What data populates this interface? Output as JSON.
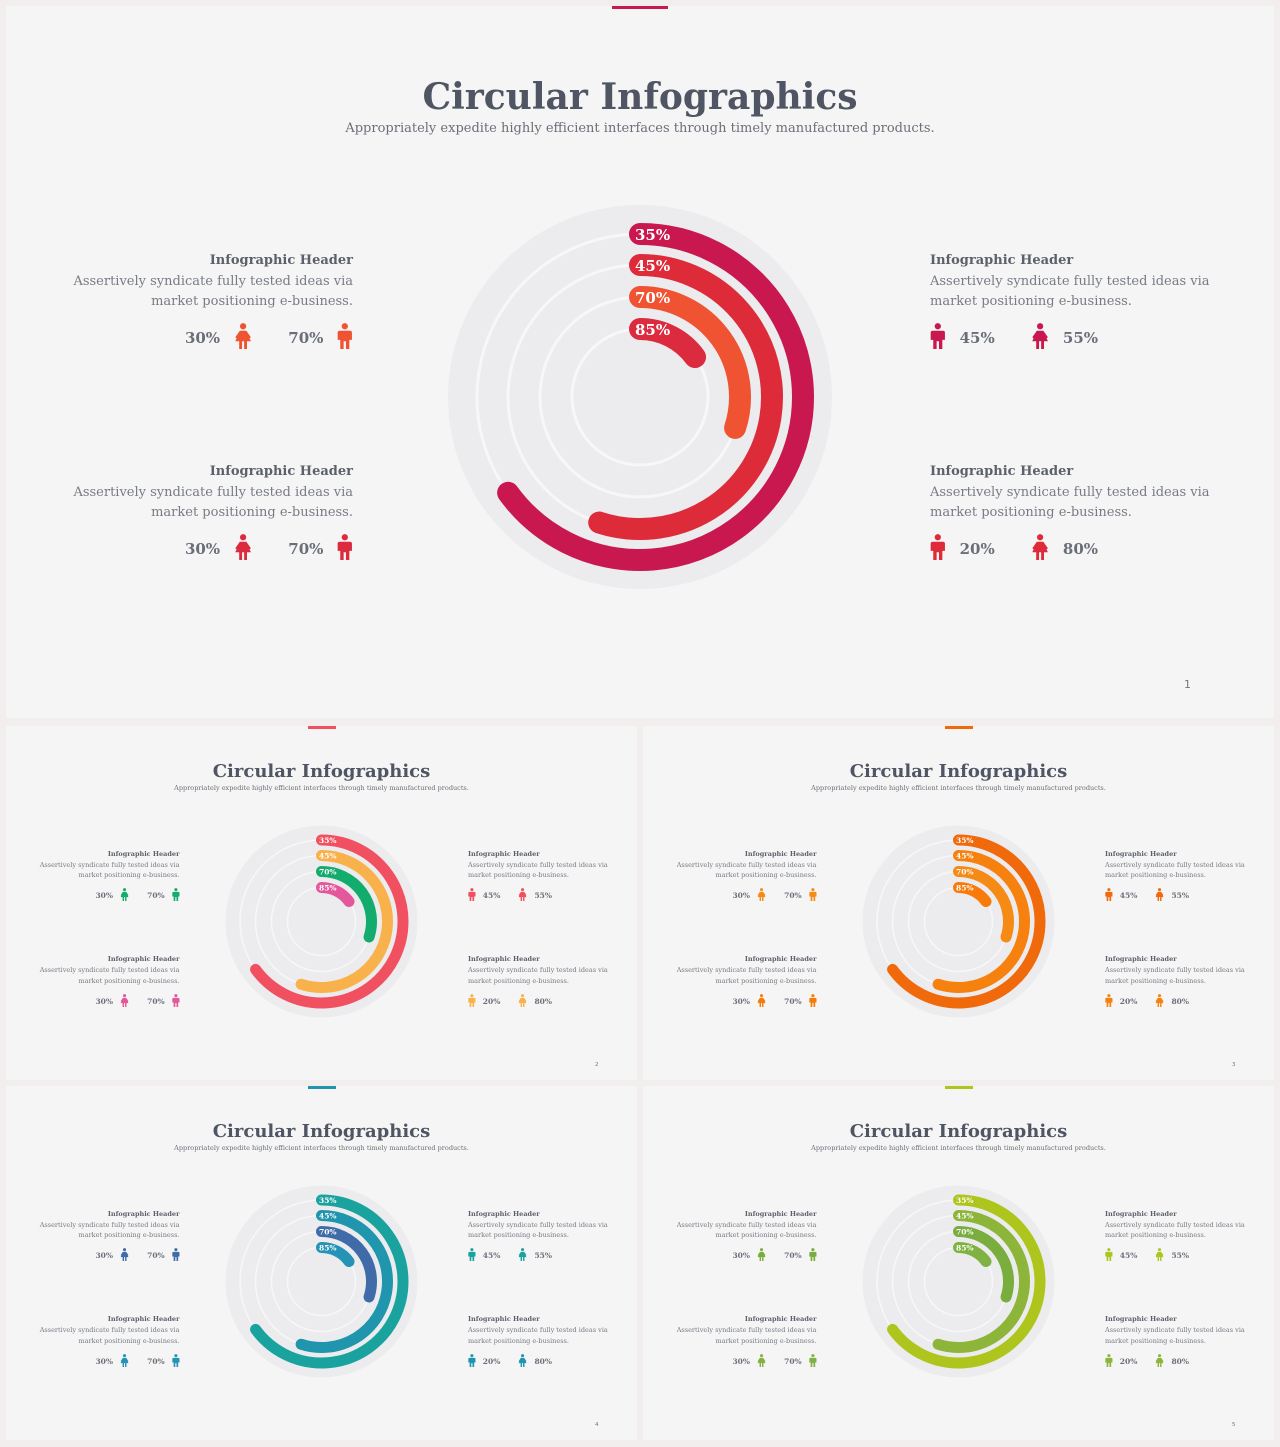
{
  "slides": [
    {
      "page": "1",
      "title": "Circular Infographics",
      "subtitle": "Appropriately expedite highly efficient interfaces through timely manufactured products.",
      "chart_data": {
        "type": "radial-bar",
        "values": [
          35,
          45,
          70,
          85
        ],
        "labels": [
          "35%",
          "45%",
          "70%",
          "85%"
        ],
        "colors": [
          "#c8184f",
          "#de2b3a",
          "#ef5332",
          "#dc2a3e"
        ]
      },
      "blocks": [
        {
          "header": "Infographic Header",
          "desc1": "Assertively syndicate fully  tested ideas via",
          "desc2": "market positioning e-business.",
          "stat1": "30%",
          "stat2": "70%",
          "icon1": "female-icon",
          "icon2": "male-icon",
          "color": "#ef5332"
        },
        {
          "header": "Infographic Header",
          "desc1": "Assertively syndicate fully  tested ideas via",
          "desc2": "market positioning e-business.",
          "stat1": "45%",
          "stat2": "55%",
          "icon1": "male-icon",
          "icon2": "female-icon",
          "color": "#c8184f"
        },
        {
          "header": "Infographic Header",
          "desc1": "Assertively syndicate fully  tested ideas via",
          "desc2": "market positioning e-business.",
          "stat1": "30%",
          "stat2": "70%",
          "icon1": "female-icon",
          "icon2": "male-icon",
          "color": "#dc2a3e"
        },
        {
          "header": "Infographic Header",
          "desc1": "Assertively syndicate fully  tested ideas via",
          "desc2": "market positioning e-business.",
          "stat1": "20%",
          "stat2": "80%",
          "icon1": "male-icon",
          "icon2": "female-icon",
          "color": "#de2b3a"
        }
      ],
      "accent": "#c8184f"
    },
    {
      "page": "2",
      "title": "Circular Infographics",
      "subtitle": "Appropriately expedite highly efficient interfaces through timely manufactured products.",
      "chart_data": {
        "type": "radial-bar",
        "values": [
          35,
          45,
          70,
          85
        ],
        "labels": [
          "35%",
          "45%",
          "70%",
          "85%"
        ],
        "colors": [
          "#f0505f",
          "#f9b24b",
          "#13ac6c",
          "#e4579a"
        ]
      },
      "blocks": [
        {
          "header": "Infographic Header",
          "desc1": "Assertively syndicate fully  tested ideas via",
          "desc2": "market positioning e-business.",
          "stat1": "30%",
          "stat2": "70%",
          "icon1": "female-icon",
          "icon2": "male-icon",
          "color": "#13ac6c"
        },
        {
          "header": "Infographic Header",
          "desc1": "Assertively syndicate fully  tested ideas via",
          "desc2": "market positioning e-business.",
          "stat1": "45%",
          "stat2": "55%",
          "icon1": "male-icon",
          "icon2": "female-icon",
          "color": "#f0505f"
        },
        {
          "header": "Infographic Header",
          "desc1": "Assertively syndicate fully  tested ideas via",
          "desc2": "market positioning e-business.",
          "stat1": "30%",
          "stat2": "70%",
          "icon1": "female-icon",
          "icon2": "male-icon",
          "color": "#e4579a"
        },
        {
          "header": "Infographic Header",
          "desc1": "Assertively syndicate fully  tested ideas via",
          "desc2": "market positioning e-business.",
          "stat1": "20%",
          "stat2": "80%",
          "icon1": "male-icon",
          "icon2": "female-icon",
          "color": "#f9b24b"
        }
      ],
      "accent": "#f0505f"
    },
    {
      "page": "3",
      "title": "Circular Infographics",
      "subtitle": "Appropriately expedite highly efficient interfaces through timely manufactured products.",
      "chart_data": {
        "type": "radial-bar",
        "values": [
          35,
          45,
          70,
          85
        ],
        "labels": [
          "35%",
          "45%",
          "70%",
          "85%"
        ],
        "colors": [
          "#f06a0c",
          "#f7810f",
          "#f58a14",
          "#f87b0a"
        ]
      },
      "blocks": [
        {
          "header": "Infographic Header",
          "desc1": "Assertively syndicate fully  tested ideas via",
          "desc2": "market positioning e-business.",
          "stat1": "30%",
          "stat2": "70%",
          "icon1": "female-icon",
          "icon2": "male-icon",
          "color": "#f58a14"
        },
        {
          "header": "Infographic Header",
          "desc1": "Assertively syndicate fully  tested ideas via",
          "desc2": "market positioning e-business.",
          "stat1": "45%",
          "stat2": "55%",
          "icon1": "male-icon",
          "icon2": "female-icon",
          "color": "#f06a0c"
        },
        {
          "header": "Infographic Header",
          "desc1": "Assertively syndicate fully  tested ideas via",
          "desc2": "market positioning e-business.",
          "stat1": "30%",
          "stat2": "70%",
          "icon1": "female-icon",
          "icon2": "male-icon",
          "color": "#f87b0a"
        },
        {
          "header": "Infographic Header",
          "desc1": "Assertively syndicate fully  tested ideas via",
          "desc2": "market positioning e-business.",
          "stat1": "20%",
          "stat2": "80%",
          "icon1": "male-icon",
          "icon2": "female-icon",
          "color": "#f7810f"
        }
      ],
      "accent": "#f06a0c"
    },
    {
      "page": "4",
      "title": "Circular Infographics",
      "subtitle": "Appropriately expedite highly efficient interfaces through timely manufactured products.",
      "chart_data": {
        "type": "radial-bar",
        "values": [
          35,
          45,
          70,
          85
        ],
        "labels": [
          "35%",
          "45%",
          "70%",
          "85%"
        ],
        "colors": [
          "#1aa29f",
          "#2095ae",
          "#3f6ca8",
          "#2493b5"
        ]
      },
      "blocks": [
        {
          "header": "Infographic Header",
          "desc1": "Assertively syndicate fully  tested ideas via",
          "desc2": "market positioning e-business.",
          "stat1": "30%",
          "stat2": "70%",
          "icon1": "female-icon",
          "icon2": "male-icon",
          "color": "#3f6ca8"
        },
        {
          "header": "Infographic Header",
          "desc1": "Assertively syndicate fully  tested ideas via",
          "desc2": "market positioning e-business.",
          "stat1": "45%",
          "stat2": "55%",
          "icon1": "male-icon",
          "icon2": "female-icon",
          "color": "#1aa29f"
        },
        {
          "header": "Infographic Header",
          "desc1": "Assertively syndicate fully  tested ideas via",
          "desc2": "market positioning e-business.",
          "stat1": "30%",
          "stat2": "70%",
          "icon1": "female-icon",
          "icon2": "male-icon",
          "color": "#2493b5"
        },
        {
          "header": "Infographic Header",
          "desc1": "Assertively syndicate fully  tested ideas via",
          "desc2": "market positioning e-business.",
          "stat1": "20%",
          "stat2": "80%",
          "icon1": "male-icon",
          "icon2": "female-icon",
          "color": "#2095ae"
        }
      ],
      "accent": "#2095ae"
    },
    {
      "page": "5",
      "title": "Circular Infographics",
      "subtitle": "Appropriately expedite highly efficient interfaces through timely manufactured products.",
      "chart_data": {
        "type": "radial-bar",
        "values": [
          35,
          45,
          70,
          85
        ],
        "labels": [
          "35%",
          "45%",
          "70%",
          "85%"
        ],
        "colors": [
          "#aec51e",
          "#8cb53a",
          "#79ad3e",
          "#7fb242"
        ]
      },
      "blocks": [
        {
          "header": "Infographic Header",
          "desc1": "Assertively syndicate fully  tested ideas via",
          "desc2": "market positioning e-business.",
          "stat1": "30%",
          "stat2": "70%",
          "icon1": "female-icon",
          "icon2": "male-icon",
          "color": "#79ad3e"
        },
        {
          "header": "Infographic Header",
          "desc1": "Assertively syndicate fully  tested ideas via",
          "desc2": "market positioning e-business.",
          "stat1": "45%",
          "stat2": "55%",
          "icon1": "male-icon",
          "icon2": "female-icon",
          "color": "#aec51e"
        },
        {
          "header": "Infographic Header",
          "desc1": "Assertively syndicate fully  tested ideas via",
          "desc2": "market positioning e-business.",
          "stat1": "30%",
          "stat2": "70%",
          "icon1": "female-icon",
          "icon2": "male-icon",
          "color": "#7fb242"
        },
        {
          "header": "Infographic Header",
          "desc1": "Assertively syndicate fully  tested ideas via",
          "desc2": "market positioning e-business.",
          "stat1": "20%",
          "stat2": "80%",
          "icon1": "male-icon",
          "icon2": "female-icon",
          "color": "#8cb53a"
        }
      ],
      "accent": "#aec51e"
    }
  ]
}
